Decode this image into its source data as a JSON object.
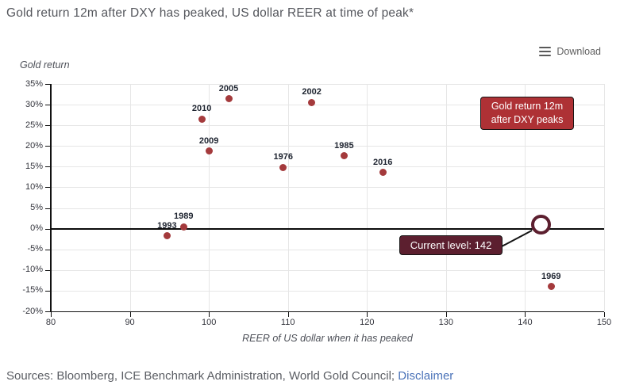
{
  "header": {
    "title": "Gold return 12m after DXY has peaked, US dollar REER at time of peak*"
  },
  "toolbar": {
    "download_label": "Download",
    "menu_icon": "hamburger-icon"
  },
  "chart_data": {
    "type": "scatter",
    "title": "Gold return 12m after DXY has peaked, US dollar REER at time of peak*",
    "xlabel": "REER of US dollar when it has peaked",
    "ylabel": "Gold return",
    "xlim": [
      80,
      150
    ],
    "ylim": [
      -20,
      35
    ],
    "xticks": [
      80,
      90,
      100,
      110,
      120,
      130,
      140,
      150
    ],
    "yticks": [
      -20,
      -15,
      -10,
      -5,
      0,
      5,
      10,
      15,
      20,
      25,
      30,
      35
    ],
    "ytick_suffix": "%",
    "grid": true,
    "zero_line": true,
    "series": [
      {
        "name": "Gold return 12m after DXY peaks",
        "marker": "filled-circle",
        "color": "#a43a3c",
        "points": [
          {
            "label": "1993",
            "x": 94.7,
            "y": -1.7
          },
          {
            "label": "1989",
            "x": 96.8,
            "y": 0.5
          },
          {
            "label": "2010",
            "x": 99.1,
            "y": 26.5
          },
          {
            "label": "2009",
            "x": 100.0,
            "y": 18.8
          },
          {
            "label": "2005",
            "x": 102.5,
            "y": 31.4
          },
          {
            "label": "1976",
            "x": 109.4,
            "y": 14.8
          },
          {
            "label": "2002",
            "x": 113.0,
            "y": 30.5
          },
          {
            "label": "1985",
            "x": 117.1,
            "y": 17.6
          },
          {
            "label": "2016",
            "x": 122.0,
            "y": 13.6
          },
          {
            "label": "1969",
            "x": 143.3,
            "y": -14.0
          }
        ]
      },
      {
        "name": "Current level",
        "marker": "open-circle",
        "color": "#5c1f2f",
        "points": [
          {
            "label": "Current level: 142",
            "x": 142,
            "y": 1
          }
        ]
      }
    ],
    "annotations": [
      {
        "id": "peaks-callout",
        "text": "Gold return 12m\nafter DXY peaks",
        "bg": "#ae3135"
      },
      {
        "id": "current-callout",
        "text": "Current level: 142",
        "bg": "#5c1f2f"
      }
    ]
  },
  "footer": {
    "sources": "Sources: Bloomberg, ICE Benchmark Administration, World Gold Council;",
    "disclaimer_label": "Disclaimer",
    "link_color": "#4a72b8"
  }
}
